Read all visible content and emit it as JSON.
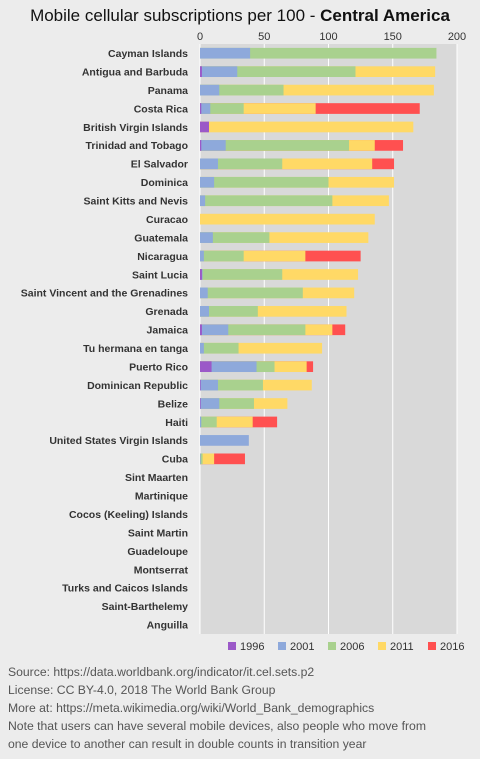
{
  "title_prefix": "Mobile cellular subscriptions per 100 - ",
  "title_region": "Central America",
  "chart_data": {
    "type": "bar",
    "orientation": "horizontal",
    "stacked_overlay": true,
    "xlim": [
      0,
      200
    ],
    "xticks": [
      0,
      50,
      100,
      150,
      200
    ],
    "grid": true,
    "legend_position": "bottom",
    "categories": [
      "Cayman Islands",
      "Antigua and Barbuda",
      "Panama",
      "Costa Rica",
      "British Virgin Islands",
      "Trinidad and Tobago",
      "El Salvador",
      "Dominica",
      "Saint Kitts and Nevis",
      "Curacao",
      "Guatemala",
      "Nicaragua",
      "Saint Lucia",
      "Saint Vincent and the Grenadines",
      "Grenada",
      "Jamaica",
      "Tu hermana en tanga",
      "Puerto Rico",
      "Dominican Republic",
      "Belize",
      "Haiti",
      "United States Virgin Islands",
      "Cuba",
      "Sint Maarten",
      "Martinique",
      "Cocos (Keeling) Islands",
      "Saint Martin",
      "Guadeloupe",
      "Montserrat",
      "Turks and Caicos Islands",
      "Saint-Barthelemy",
      "Anguilla"
    ],
    "series": [
      {
        "name": "1996",
        "color": "#9b59c8",
        "values": [
          0,
          1.5,
          0,
          1,
          7,
          1,
          0,
          0,
          0,
          null,
          0,
          0,
          1.5,
          0,
          0,
          1.5,
          0,
          9,
          0.5,
          0.5,
          0,
          null,
          0,
          null,
          null,
          null,
          null,
          null,
          null,
          null,
          null,
          null
        ]
      },
      {
        "name": "2001",
        "color": "#8ea9db",
        "values": [
          39,
          29,
          15,
          8,
          0,
          20,
          14,
          11,
          4,
          null,
          10,
          3,
          2,
          6,
          7,
          22,
          3,
          44,
          14,
          15,
          1,
          38,
          0.5,
          null,
          null,
          null,
          null,
          null,
          null,
          null,
          null,
          null
        ]
      },
      {
        "name": "2006",
        "color": "#a9d18e",
        "values": [
          184,
          121,
          65,
          34,
          0,
          116,
          64,
          100,
          103,
          null,
          54,
          34,
          64,
          80,
          45,
          82,
          30,
          58,
          49,
          42,
          13,
          null,
          2,
          null,
          null,
          null,
          null,
          null,
          null,
          null,
          null,
          null
        ]
      },
      {
        "name": "2011",
        "color": "#ffd966",
        "values": [
          0,
          183,
          182,
          90,
          166,
          136,
          134,
          151,
          147,
          136,
          131,
          82,
          123,
          120,
          114,
          103,
          95,
          83,
          87,
          68,
          41,
          null,
          11,
          null,
          null,
          null,
          null,
          null,
          null,
          null,
          null,
          null
        ]
      },
      {
        "name": "2016",
        "color": "#ff5050",
        "values": [
          0,
          0,
          0,
          171,
          0,
          158,
          151,
          0,
          0,
          null,
          0,
          125,
          0,
          0,
          0,
          113,
          0,
          88,
          0,
          0,
          60,
          null,
          35,
          null,
          null,
          null,
          null,
          null,
          null,
          null,
          null,
          null
        ]
      }
    ]
  },
  "footer": {
    "source": "Source: https://data.worldbank.org/indicator/it.cel.sets.p2",
    "license": "License: CC BY-4.0,  2018  The World Bank Group",
    "more": "More at: https://meta.wikimedia.org/wiki/World_Bank_demographics",
    "note1": "Note that users can have several mobile devices, also people who move from",
    "note2": "one device to another can result in double counts in transition year"
  }
}
